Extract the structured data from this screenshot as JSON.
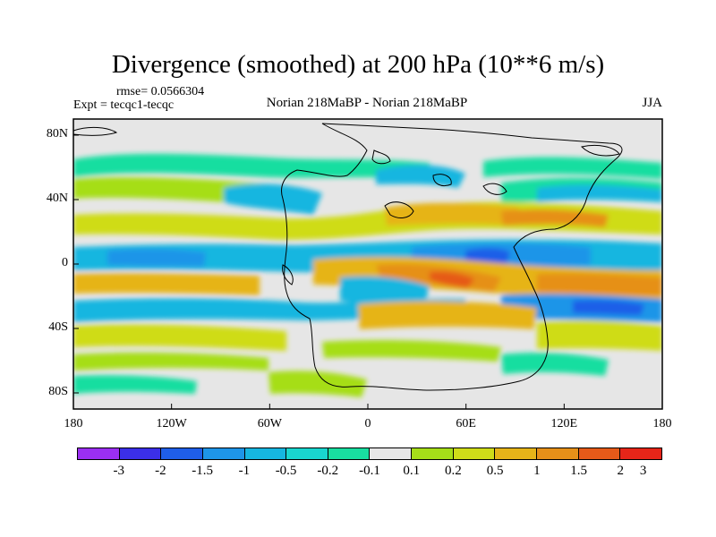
{
  "plot": {
    "title": "Divergence (smoothed) at 200 hPa (10**6 m/s)",
    "rmse": "rmse= 0.0566304",
    "expt": "Expt = tecqc1-tecqc",
    "experiment_name": "Norian 218MaBP - Norian 218MaBP",
    "season": "JJA"
  },
  "axes": {
    "y_labels": [
      "80N",
      "40N",
      "0",
      "40S",
      "80S"
    ],
    "y_values": [
      80,
      40,
      0,
      -40,
      -80
    ],
    "x_labels": [
      "180",
      "120W",
      "60W",
      "0",
      "60E",
      "120E",
      "180"
    ],
    "x_values": [
      -180,
      -120,
      -60,
      0,
      60,
      120,
      180
    ],
    "lon_range": [
      -180,
      180
    ],
    "lat_range": [
      -90,
      90
    ]
  },
  "colorbar": {
    "labels": [
      "-3",
      "-2",
      "-1.5",
      "-1",
      "-0.5",
      "-0.2",
      "-0.1",
      "0.1",
      "0.2",
      "0.5",
      "1",
      "1.5",
      "2",
      "3"
    ],
    "colors": [
      "#9b2ff2",
      "#3b2fe8",
      "#1f5ee8",
      "#1e95e8",
      "#16b6e0",
      "#19d6cf",
      "#19dea0",
      "#e6e6e6",
      "#a6de19",
      "#cfdc19",
      "#e6b419",
      "#e69019",
      "#e65a19",
      "#e62519"
    ]
  }
}
